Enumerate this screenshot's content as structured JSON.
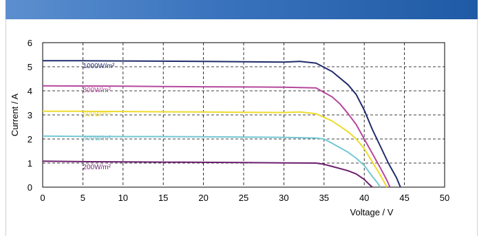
{
  "chart_data": {
    "type": "line",
    "title": "",
    "xlabel": "Voltage / V",
    "ylabel": "Current / A",
    "xlim": [
      0,
      50
    ],
    "ylim": [
      0,
      6
    ],
    "xticks": [
      0,
      5,
      10,
      15,
      20,
      25,
      30,
      35,
      40,
      45,
      50
    ],
    "yticks": [
      0,
      1,
      2,
      3,
      4,
      5,
      6
    ],
    "grid": true,
    "legend": "inline labels",
    "series": [
      {
        "name": "1000W/m²",
        "color": "#1f2a6b",
        "label_at": [
          5,
          4.95
        ],
        "points": [
          [
            0,
            5.25
          ],
          [
            5,
            5.25
          ],
          [
            10,
            5.24
          ],
          [
            15,
            5.23
          ],
          [
            20,
            5.22
          ],
          [
            25,
            5.21
          ],
          [
            30,
            5.19
          ],
          [
            32,
            5.22
          ],
          [
            34,
            5.15
          ],
          [
            36,
            4.8
          ],
          [
            38,
            4.25
          ],
          [
            39,
            3.85
          ],
          [
            40,
            3.2
          ],
          [
            41,
            2.4
          ],
          [
            42,
            1.7
          ],
          [
            43,
            1.0
          ],
          [
            44,
            0.4
          ],
          [
            44.5,
            0
          ]
        ]
      },
      {
        "name": "800W/m²",
        "color": "#b5479b",
        "label_at": [
          5,
          3.95
        ],
        "points": [
          [
            0,
            4.21
          ],
          [
            5,
            4.2
          ],
          [
            10,
            4.19
          ],
          [
            15,
            4.18
          ],
          [
            20,
            4.17
          ],
          [
            25,
            4.16
          ],
          [
            30,
            4.15
          ],
          [
            34,
            4.12
          ],
          [
            36,
            3.75
          ],
          [
            37,
            3.45
          ],
          [
            38,
            3.05
          ],
          [
            39,
            2.6
          ],
          [
            40,
            2.0
          ],
          [
            41,
            1.4
          ],
          [
            42,
            0.8
          ],
          [
            42.8,
            0.3
          ],
          [
            43.2,
            0
          ]
        ]
      },
      {
        "name": "600W/m²",
        "color": "#eedb2e",
        "label_at": [
          5,
          2.95
        ],
        "points": [
          [
            0,
            3.15
          ],
          [
            5,
            3.15
          ],
          [
            10,
            3.14
          ],
          [
            15,
            3.13
          ],
          [
            20,
            3.12
          ],
          [
            25,
            3.11
          ],
          [
            30,
            3.1
          ],
          [
            32,
            3.12
          ],
          [
            34,
            3.05
          ],
          [
            36,
            2.75
          ],
          [
            38,
            2.3
          ],
          [
            39,
            2.0
          ],
          [
            40,
            1.6
          ],
          [
            41,
            1.05
          ],
          [
            42,
            0.5
          ],
          [
            42.5,
            0.2
          ],
          [
            42.8,
            0
          ]
        ]
      },
      {
        "name": "400W/m²",
        "color": "#72c7d3",
        "label_at": [
          5,
          1.95
        ],
        "points": [
          [
            0,
            2.12
          ],
          [
            5,
            2.11
          ],
          [
            10,
            2.1
          ],
          [
            15,
            2.1
          ],
          [
            20,
            2.09
          ],
          [
            25,
            2.08
          ],
          [
            30,
            2.07
          ],
          [
            34,
            2.04
          ],
          [
            35,
            2.0
          ],
          [
            36,
            1.82
          ],
          [
            38,
            1.45
          ],
          [
            39,
            1.2
          ],
          [
            40,
            0.9
          ],
          [
            41,
            0.45
          ],
          [
            41.7,
            0.15
          ],
          [
            42,
            0
          ]
        ]
      },
      {
        "name": "200W/m²",
        "color": "#6b1e6e",
        "label_at": [
          5,
          0.75
        ],
        "points": [
          [
            0,
            1.08
          ],
          [
            5,
            1.06
          ],
          [
            10,
            1.05
          ],
          [
            15,
            1.04
          ],
          [
            20,
            1.03
          ],
          [
            25,
            1.02
          ],
          [
            30,
            1.01
          ],
          [
            34,
            1.0
          ],
          [
            35,
            0.95
          ],
          [
            36,
            0.86
          ],
          [
            38,
            0.68
          ],
          [
            39,
            0.55
          ],
          [
            40,
            0.32
          ],
          [
            40.6,
            0.12
          ],
          [
            41,
            0
          ]
        ]
      }
    ]
  }
}
